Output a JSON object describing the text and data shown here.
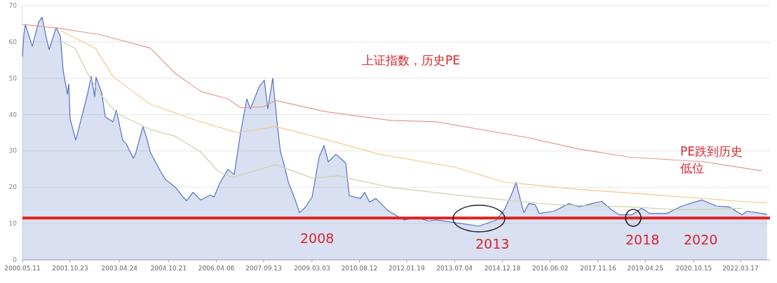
{
  "chart_data": {
    "type": "line",
    "xlim": [
      "2000-05-11",
      "2023-02-08"
    ],
    "xticks": [
      {
        "value": "2000-05-11",
        "label": "2000.05.11"
      },
      {
        "value": "2001-10-23",
        "label": "2001.10.23"
      },
      {
        "value": "2003-04-24",
        "label": "2003.04.24"
      },
      {
        "value": "2004-10-21",
        "label": "2004.10.21"
      },
      {
        "value": "2006-04-06",
        "label": "2006.04.06"
      },
      {
        "value": "2007-09-13",
        "label": "2007.09.13"
      },
      {
        "value": "2009-03-03",
        "label": "2009.03.03"
      },
      {
        "value": "2010-08-12",
        "label": "2010.08.12"
      },
      {
        "value": "2012-01-19",
        "label": "2012.01.19"
      },
      {
        "value": "2013-07-04",
        "label": "2013.07.04"
      },
      {
        "value": "2014-12-18",
        "label": "2014.12.18"
      },
      {
        "value": "2016-06-02",
        "label": "2016.06.02"
      },
      {
        "value": "2017-11-16",
        "label": "2017.11.16"
      },
      {
        "value": "2019-04-25",
        "label": "2019.04.25"
      },
      {
        "value": "2020-10-15",
        "label": "2020.10.15"
      },
      {
        "value": "2022-03-17",
        "label": "2022.03.17"
      }
    ],
    "ylim": [
      0,
      70
    ],
    "yticks": [
      0,
      10,
      20,
      30,
      40,
      50,
      60,
      70
    ],
    "grid": "y",
    "series": [
      {
        "type": "area",
        "color": "#5470c6",
        "x": [
          "2000-05-11",
          "2000-05-27",
          "2000-06-12",
          "2000-08-28",
          "2000-11-06",
          "2000-12-15",
          "2001-02-01",
          "2001-03-04",
          "2001-05-21",
          "2001-07-07",
          "2001-08-07",
          "2001-09-23",
          "2001-10-08",
          "2001-10-23",
          "2001-12-25",
          "2002-05-06",
          "2002-06-14",
          "2002-07-23",
          "2002-08-07",
          "2002-10-09",
          "2002-11-17",
          "2003-02-10",
          "2003-03-20",
          "2003-05-30",
          "2003-07-08",
          "2003-09-24",
          "2003-10-18",
          "2004-01-11",
          "2004-02-27",
          "2004-03-30",
          "2004-07-25",
          "2004-09-18",
          "2005-01-05",
          "2005-04-01",
          "2005-05-10",
          "2005-07-19",
          "2005-10-13",
          "2006-01-30",
          "2006-03-10",
          "2006-05-19",
          "2006-08-12",
          "2006-10-21",
          "2006-12-30",
          "2007-03-10",
          "2007-04-18",
          "2007-07-28",
          "2007-09-20",
          "2007-10-29",
          "2007-12-23",
          "2008-02-08",
          "2008-03-18",
          "2008-04-27",
          "2008-06-13",
          "2008-08-29",
          "2008-10-15",
          "2008-12-24",
          "2009-03-04",
          "2009-05-21",
          "2009-07-15",
          "2009-08-31",
          "2009-11-24",
          "2010-03-13",
          "2010-04-21",
          "2010-08-24",
          "2010-10-09",
          "2010-12-03",
          "2011-02-11",
          "2011-06-15",
          "2011-08-01",
          "2011-12-20",
          "2012-05-09",
          "2012-09-18",
          "2012-12-13",
          "2013-06-26",
          "2014-04-02",
          "2014-10-14",
          "2015-01-08",
          "2015-03-27",
          "2015-05-20",
          "2015-07-06",
          "2015-08-14",
          "2015-10-08",
          "2015-12-17",
          "2016-02-02",
          "2016-07-15",
          "2016-12-25",
          "2017-04-20",
          "2017-09-08",
          "2017-12-26",
          "2018-04-14",
          "2018-07-09",
          "2018-11-26",
          "2019-03-15",
          "2019-06-09",
          "2019-12-20",
          "2020-06-02",
          "2021-01-14",
          "2021-06-26",
          "2021-11-13",
          "2022-04-03",
          "2022-05-28",
          "2022-11-06",
          "2023-01-07"
        ],
        "values": [
          56,
          62,
          64.8,
          58.8,
          65.4,
          66.8,
          61,
          57.9,
          64,
          61.5,
          52,
          45.6,
          48.5,
          38.8,
          33,
          45.8,
          50.5,
          44.9,
          50.3,
          46,
          39.4,
          38,
          41.2,
          33,
          32,
          28,
          29.1,
          36.7,
          33,
          29.7,
          24.3,
          22.1,
          20,
          17.3,
          16.3,
          18.6,
          16.5,
          17.9,
          17.3,
          21.4,
          24.9,
          23.5,
          35,
          44.3,
          41.6,
          47.8,
          49.5,
          41.6,
          50,
          38,
          29.7,
          26.2,
          21.4,
          16.5,
          13,
          14.6,
          17.3,
          28.3,
          31.5,
          27,
          29.1,
          26.6,
          17.7,
          16.9,
          18.6,
          15.9,
          16.9,
          13.8,
          13,
          11,
          11.7,
          10.7,
          11,
          10.3,
          9.3,
          11,
          13.8,
          17.9,
          21.4,
          16.5,
          13,
          15.5,
          15.2,
          12.8,
          13.4,
          15.5,
          14.6,
          15.5,
          16.1,
          13.8,
          12.4,
          12.4,
          14.2,
          12.8,
          12.8,
          14.8,
          16.5,
          14.8,
          14.6,
          12.4,
          13.4,
          12.8,
          12.5
        ]
      },
      {
        "color": "#e39a8c",
        "x": [
          "2000-05-11",
          "2001-07-07",
          "2002-09-23",
          "2004-03-30",
          "2005-01-05",
          "2005-10-13",
          "2006-08-12",
          "2006-12-30",
          "2007-09-05",
          "2008-01-23",
          "2009-07-31",
          "2011-07-24",
          "2012-12-13",
          "2015-10-08",
          "2017-04-20",
          "2018-10-25",
          "2021-02-06",
          "2022-11-06"
        ],
        "values": [
          64.8,
          63.7,
          62,
          58.3,
          51.3,
          46.4,
          44.3,
          41.9,
          42.1,
          43.9,
          40.8,
          38.4,
          38,
          33.6,
          30.5,
          28.3,
          27,
          24.5
        ]
      },
      {
        "color": "#f2c98a",
        "x": [
          "2001-07-07",
          "2002-07-30",
          "2003-02-10",
          "2003-09-17",
          "2004-03-30",
          "2005-10-13",
          "2006-11-29",
          "2008-01-23",
          "2009-07-31",
          "2011-03-14",
          "2013-06-26",
          "2015-01-08",
          "2017-04-20",
          "2019-08-03",
          "2022-04-03",
          "2023-01-07"
        ],
        "values": [
          63.1,
          58.3,
          50.5,
          46.4,
          42.9,
          38,
          35,
          36.7,
          33.2,
          29.1,
          25.6,
          21.4,
          19.4,
          17.9,
          16.1,
          15.7
        ]
      },
      {
        "color": "#c9d3a6",
        "x": [
          "2001-07-07",
          "2001-12-17",
          "2002-05-06",
          "2002-09-23",
          "2003-04-05",
          "2004-03-30",
          "2005-01-05",
          "2005-10-13",
          "2006-04-26",
          "2006-10-06",
          "2008-01-23",
          "2009-03-12",
          "2009-12-17",
          "2011-07-24",
          "2013-06-26",
          "2015-01-08",
          "2016-07-15",
          "2018-10-25",
          "2020-05-10",
          "2022-04-03"
        ],
        "values": [
          60.2,
          58.3,
          51.3,
          45.6,
          40.2,
          35.9,
          34,
          29.7,
          24.3,
          22.7,
          26.2,
          22.5,
          23.1,
          20,
          17.9,
          16.5,
          15.2,
          14.6,
          13.8,
          14.2
        ]
      }
    ],
    "ref_lines": [
      {
        "axis": "y",
        "value": 11.5,
        "color": "#e02020"
      }
    ],
    "annotations": [
      "上证指数，历史PE",
      "PE跌到历史低位",
      "2008",
      "2013",
      "2018",
      "2020"
    ]
  }
}
